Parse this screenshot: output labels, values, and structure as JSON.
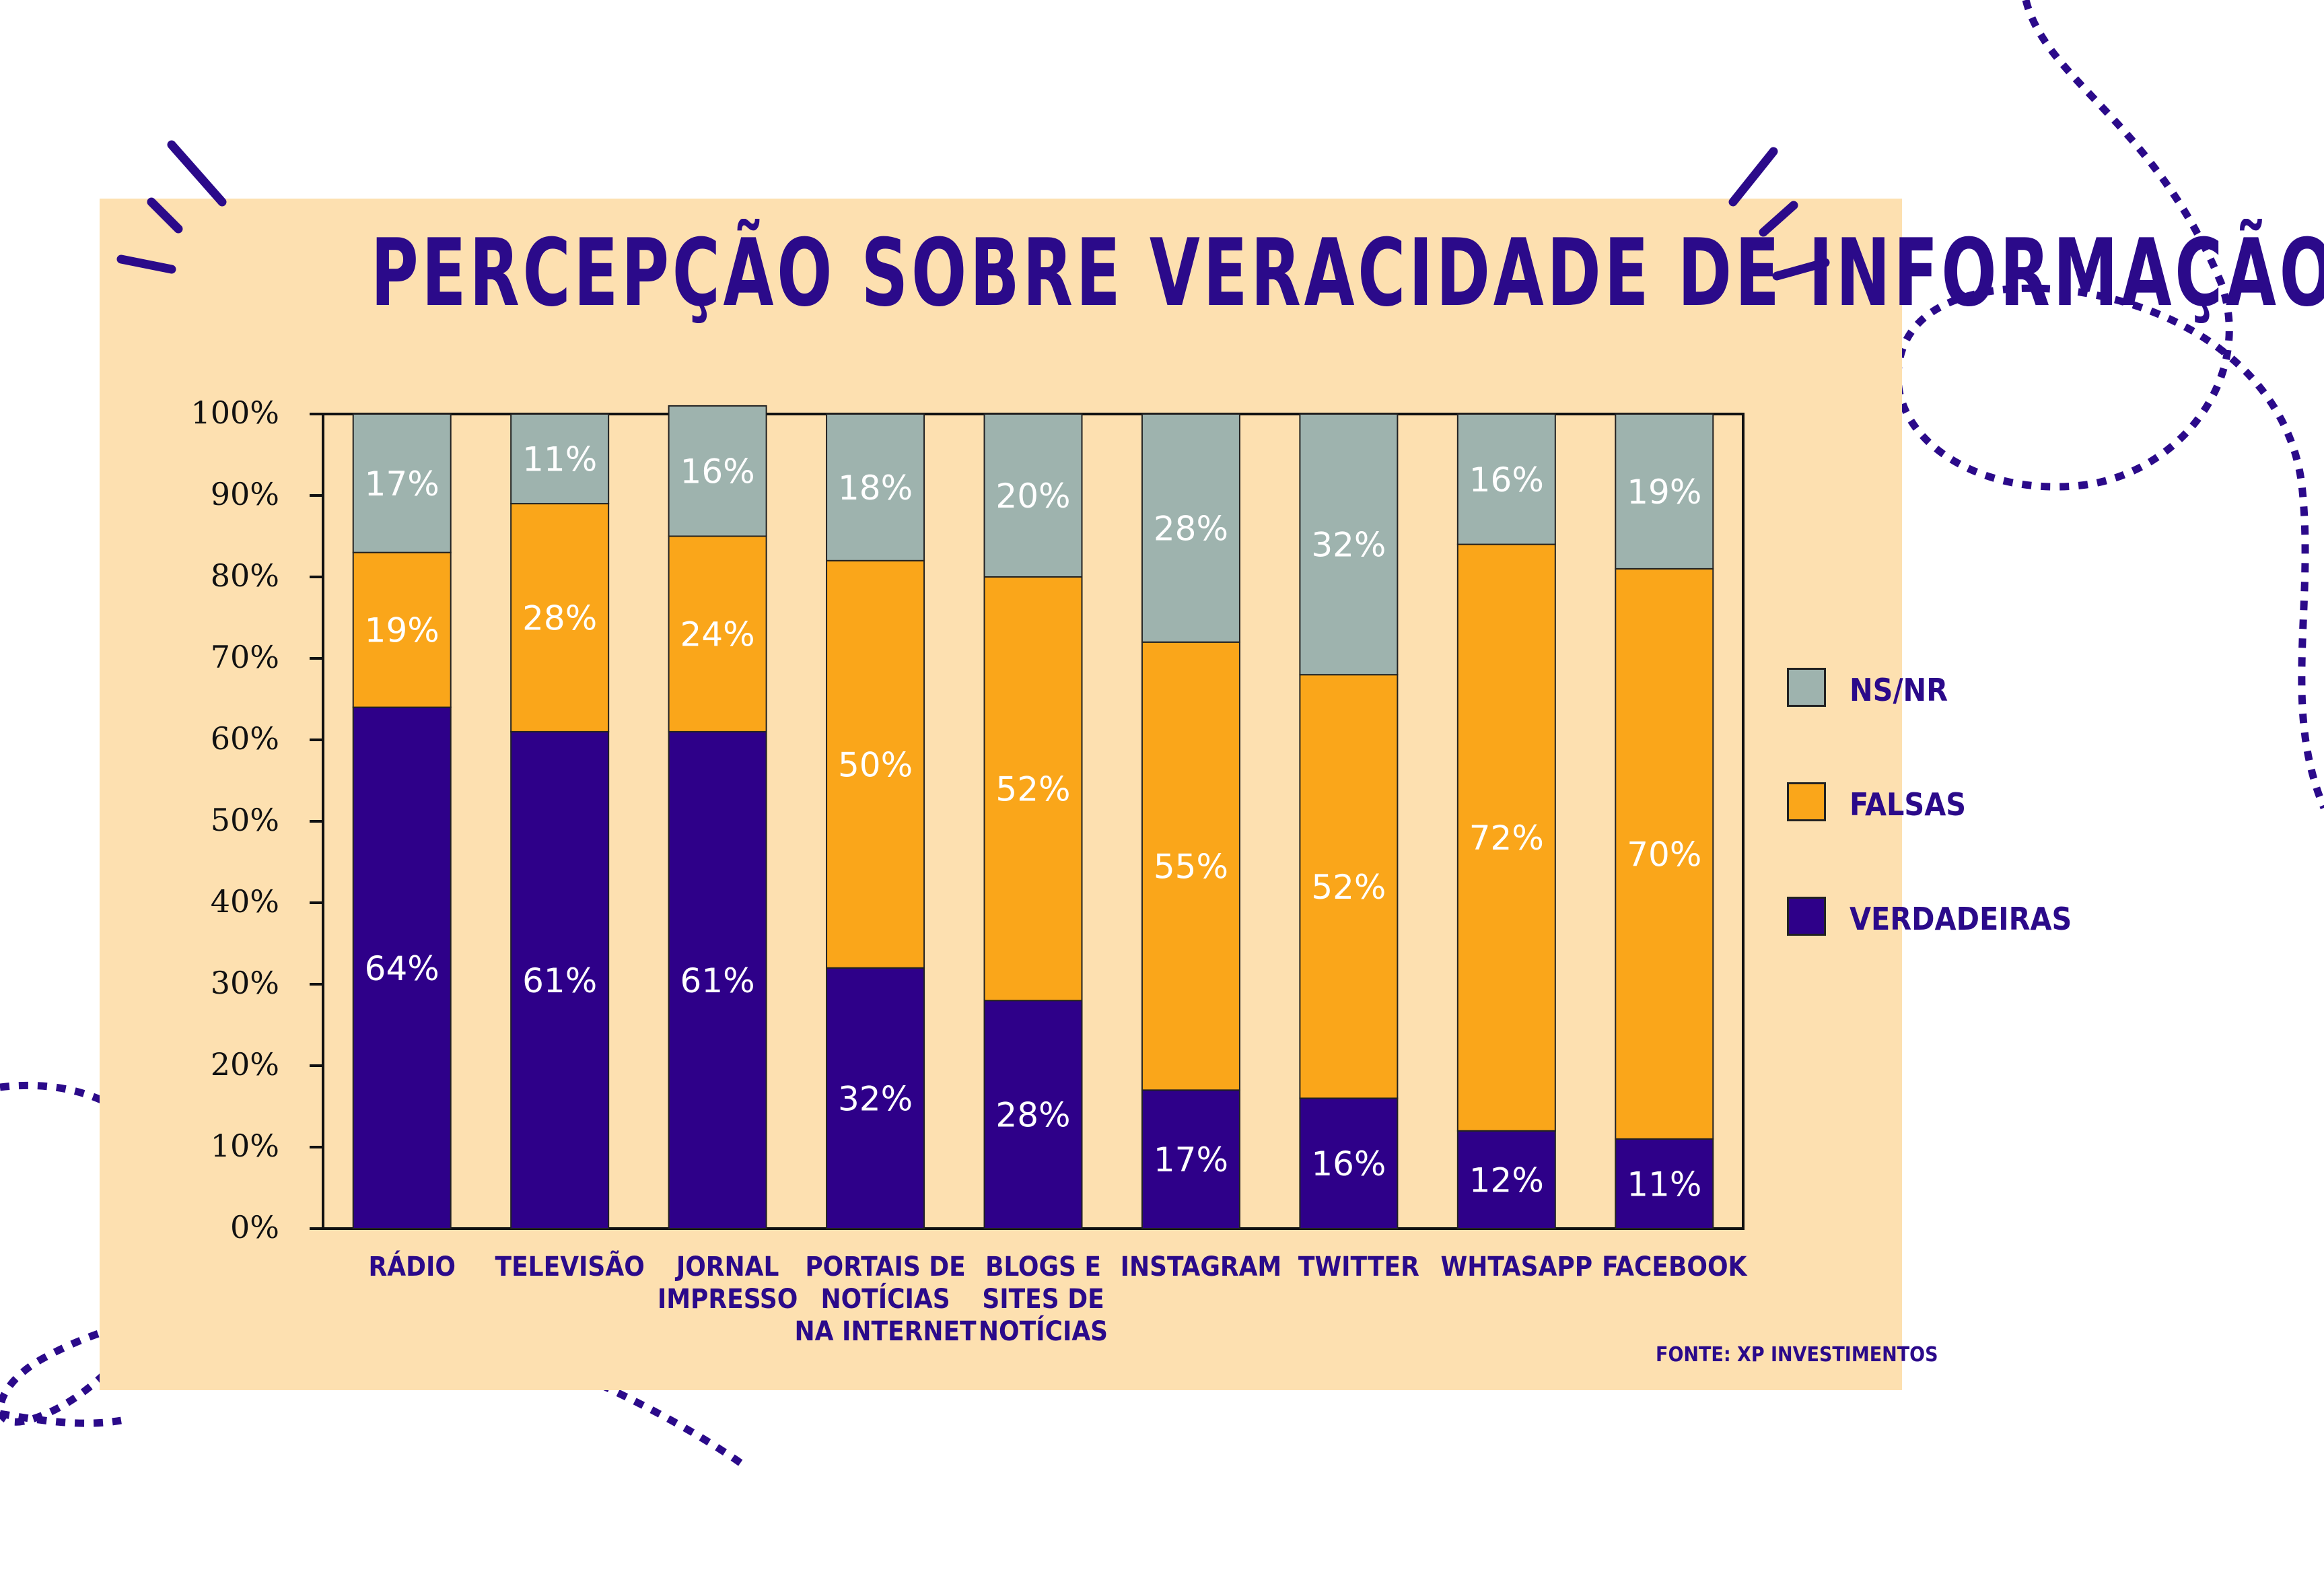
{
  "title": "PERCEPÇÃO SOBRE VERACIDADE DE INFORMAÇÃO",
  "source": "FONTE: XP INVESTIMENTOS",
  "colors": {
    "verdadeiras": "#2e0089",
    "falsas": "#faa61a",
    "nsnr": "#9eb3ae",
    "panel": "#fde0b0",
    "accent": "#2b0a8a"
  },
  "legend": [
    {
      "key": "nsnr",
      "label": "NS/NR"
    },
    {
      "key": "falsas",
      "label": "FALSAS"
    },
    {
      "key": "verdadeiras",
      "label": "VERDADEIRAS"
    }
  ],
  "chart_data": {
    "type": "bar",
    "stacked": true,
    "title": "PERCEPÇÃO SOBRE VERACIDADE DE INFORMAÇÃO",
    "ylim": [
      0,
      100
    ],
    "yticks": [
      "0%",
      "10%",
      "20%",
      "30%",
      "40%",
      "50%",
      "60%",
      "70%",
      "80%",
      "90%",
      "100%"
    ],
    "categories": [
      [
        "RÁDIO"
      ],
      [
        "TELEVISÃO"
      ],
      [
        "JORNAL",
        "IMPRESSO"
      ],
      [
        "PORTAIS DE",
        "NOTÍCIAS",
        "NA INTERNET"
      ],
      [
        "BLOGS E",
        "SITES DE",
        "NOTÍCIAS"
      ],
      [
        "INSTAGRAM"
      ],
      [
        "TWITTER"
      ],
      [
        "WHTASAPP"
      ],
      [
        "FACEBOOK"
      ]
    ],
    "series": [
      {
        "name": "VERDADEIRAS",
        "key": "verdadeiras",
        "values": [
          64,
          61,
          61,
          32,
          28,
          17,
          16,
          12,
          11
        ]
      },
      {
        "name": "FALSAS",
        "key": "falsas",
        "values": [
          19,
          28,
          24,
          50,
          52,
          55,
          52,
          72,
          70
        ]
      },
      {
        "name": "NS/NR",
        "key": "nsnr",
        "values": [
          17,
          11,
          16,
          18,
          20,
          28,
          32,
          16,
          19
        ]
      }
    ],
    "legend_position": "right"
  }
}
